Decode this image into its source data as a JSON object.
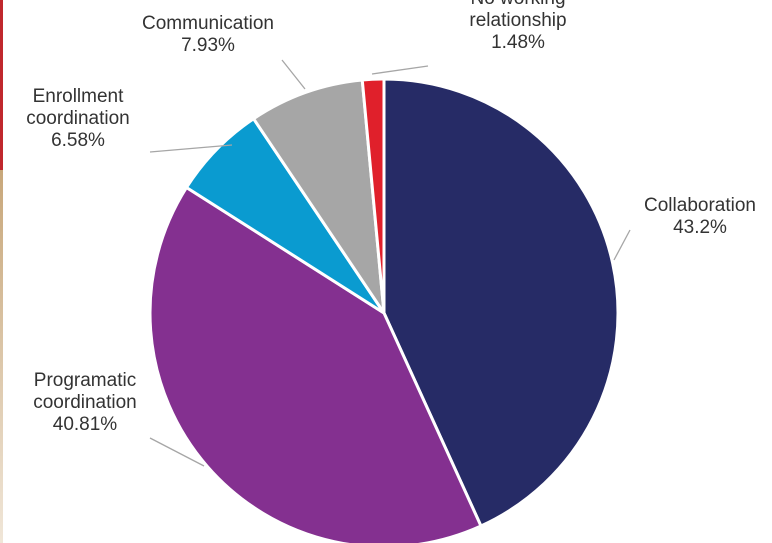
{
  "chart_data": {
    "type": "pie",
    "slices": [
      {
        "label_lines": [
          "Collaboration"
        ],
        "percent_label": "43.2%",
        "value": 43.2,
        "color": "#262b66"
      },
      {
        "label_lines": [
          "Programatic",
          "coordination"
        ],
        "percent_label": "40.81%",
        "value": 40.81,
        "color": "#843090"
      },
      {
        "label_lines": [
          "Enrollment",
          "coordination"
        ],
        "percent_label": "6.58%",
        "value": 6.58,
        "color": "#0a9bd0"
      },
      {
        "label_lines": [
          "Communication"
        ],
        "percent_label": "7.93%",
        "value": 7.93,
        "color": "#a6a6a6"
      },
      {
        "label_lines": [
          "No working",
          "relationship"
        ],
        "percent_label": "1.48%",
        "value": 1.48,
        "color": "#e0202b"
      }
    ],
    "start_angle_deg": 0,
    "direction": "clockwise",
    "legend": "none",
    "label_style": "outside-with-leader-lines"
  }
}
